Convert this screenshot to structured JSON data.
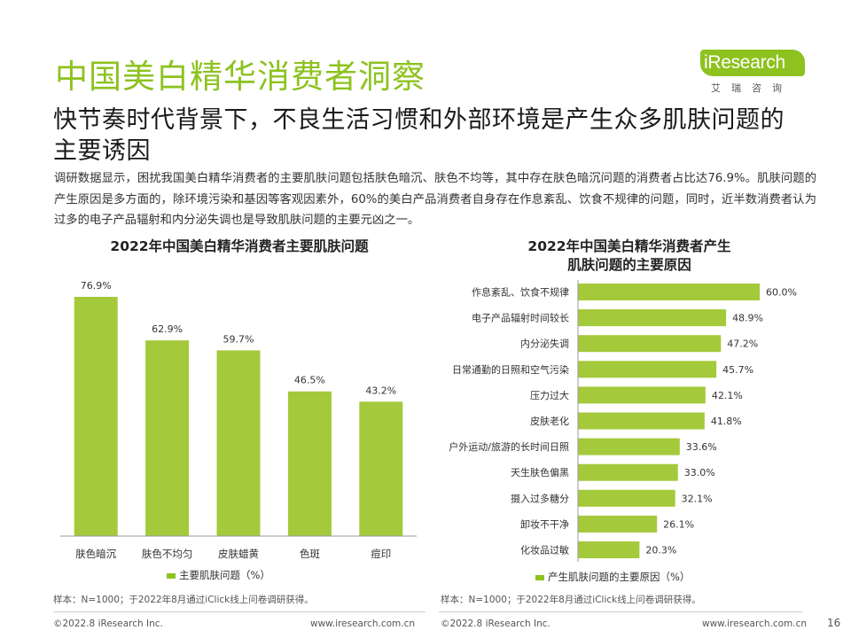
{
  "page": {
    "title": "中国美白精华消费者洞察",
    "headline": "快节奏时代背景下，不良生活习惯和外部环境是产生众多肌肤问题的主要诱因",
    "intro": "调研数据显示，困扰我国美白精华消费者的主要肌肤问题包括肤色暗沉、肤色不均等，其中存在肤色暗沉问题的消费者占比达76.9%。肌肤问题的产生原因是多方面的，除环境污染和基因等客观因素外，60%的美白产品消费者自身存在作息紊乱、饮食不规律的问题，同时，近半数消费者认为过多的电子产品辐射和内分泌失调也是导致肌肤问题的主要元凶之一。",
    "page_number": "16"
  },
  "logo": {
    "text": "iResearch",
    "sub": "艾瑞咨询"
  },
  "colors": {
    "accent": "#8dc21f",
    "bar": "#a4c93b",
    "hbar": "#a4c93b"
  },
  "left_chart": {
    "title": "2022年中国美白精华消费者主要肌肤问题",
    "legend": "主要肌肤问题（%）",
    "note": "样本：N=1000；于2022年8月通过iClick线上问卷调研获得。"
  },
  "right_chart": {
    "title_line1": "2022年中国美白精华消费者产生",
    "title_line2": "肌肤问题的主要原因",
    "legend": "产生肌肤问题的主要原因（%）",
    "note": "样本：N=1000；于2022年8月通过iClick线上问卷调研获得。"
  },
  "footer": {
    "copyright_left": "©2022.8 iResearch Inc.",
    "website_left": "www.iresearch.com.cn",
    "copyright_right": "©2022.8 iResearch Inc.",
    "website_right": "www.iresearch.com.cn"
  },
  "chart_data": [
    {
      "type": "bar",
      "title": "2022年中国美白精华消费者主要肌肤问题",
      "categories": [
        "肤色暗沉",
        "肤色不均匀",
        "皮肤蜡黄",
        "色斑",
        "痘印"
      ],
      "series": [
        {
          "name": "主要肌肤问题（%）",
          "values": [
            76.9,
            62.9,
            59.7,
            46.5,
            43.2
          ]
        }
      ],
      "value_labels": [
        "76.9%",
        "62.9%",
        "59.7%",
        "46.5%",
        "43.2%"
      ],
      "ylim": [
        0,
        80
      ],
      "grid": false,
      "legend": "bottom"
    },
    {
      "type": "bar",
      "orientation": "horizontal",
      "title": "2022年中国美白精华消费者产生肌肤问题的主要原因",
      "categories": [
        "作息紊乱、饮食不规律",
        "电子产品辐射时间较长",
        "内分泌失调",
        "日常通勤的日照和空气污染",
        "压力过大",
        "皮肤老化",
        "户外运动/旅游的长时间日照",
        "天生肤色偏黑",
        "摄入过多糖分",
        "卸妆不干净",
        "化妆品过敏"
      ],
      "series": [
        {
          "name": "产生肌肤问题的主要原因（%）",
          "values": [
            60.0,
            48.9,
            47.2,
            45.7,
            42.1,
            41.8,
            33.6,
            33.0,
            32.1,
            26.1,
            20.3
          ]
        }
      ],
      "value_labels": [
        "60.0%",
        "48.9%",
        "47.2%",
        "45.7%",
        "42.1%",
        "41.8%",
        "33.6%",
        "33.0%",
        "32.1%",
        "26.1%",
        "20.3%"
      ],
      "xlim": [
        0,
        60
      ],
      "grid": false,
      "legend": "bottom"
    }
  ]
}
